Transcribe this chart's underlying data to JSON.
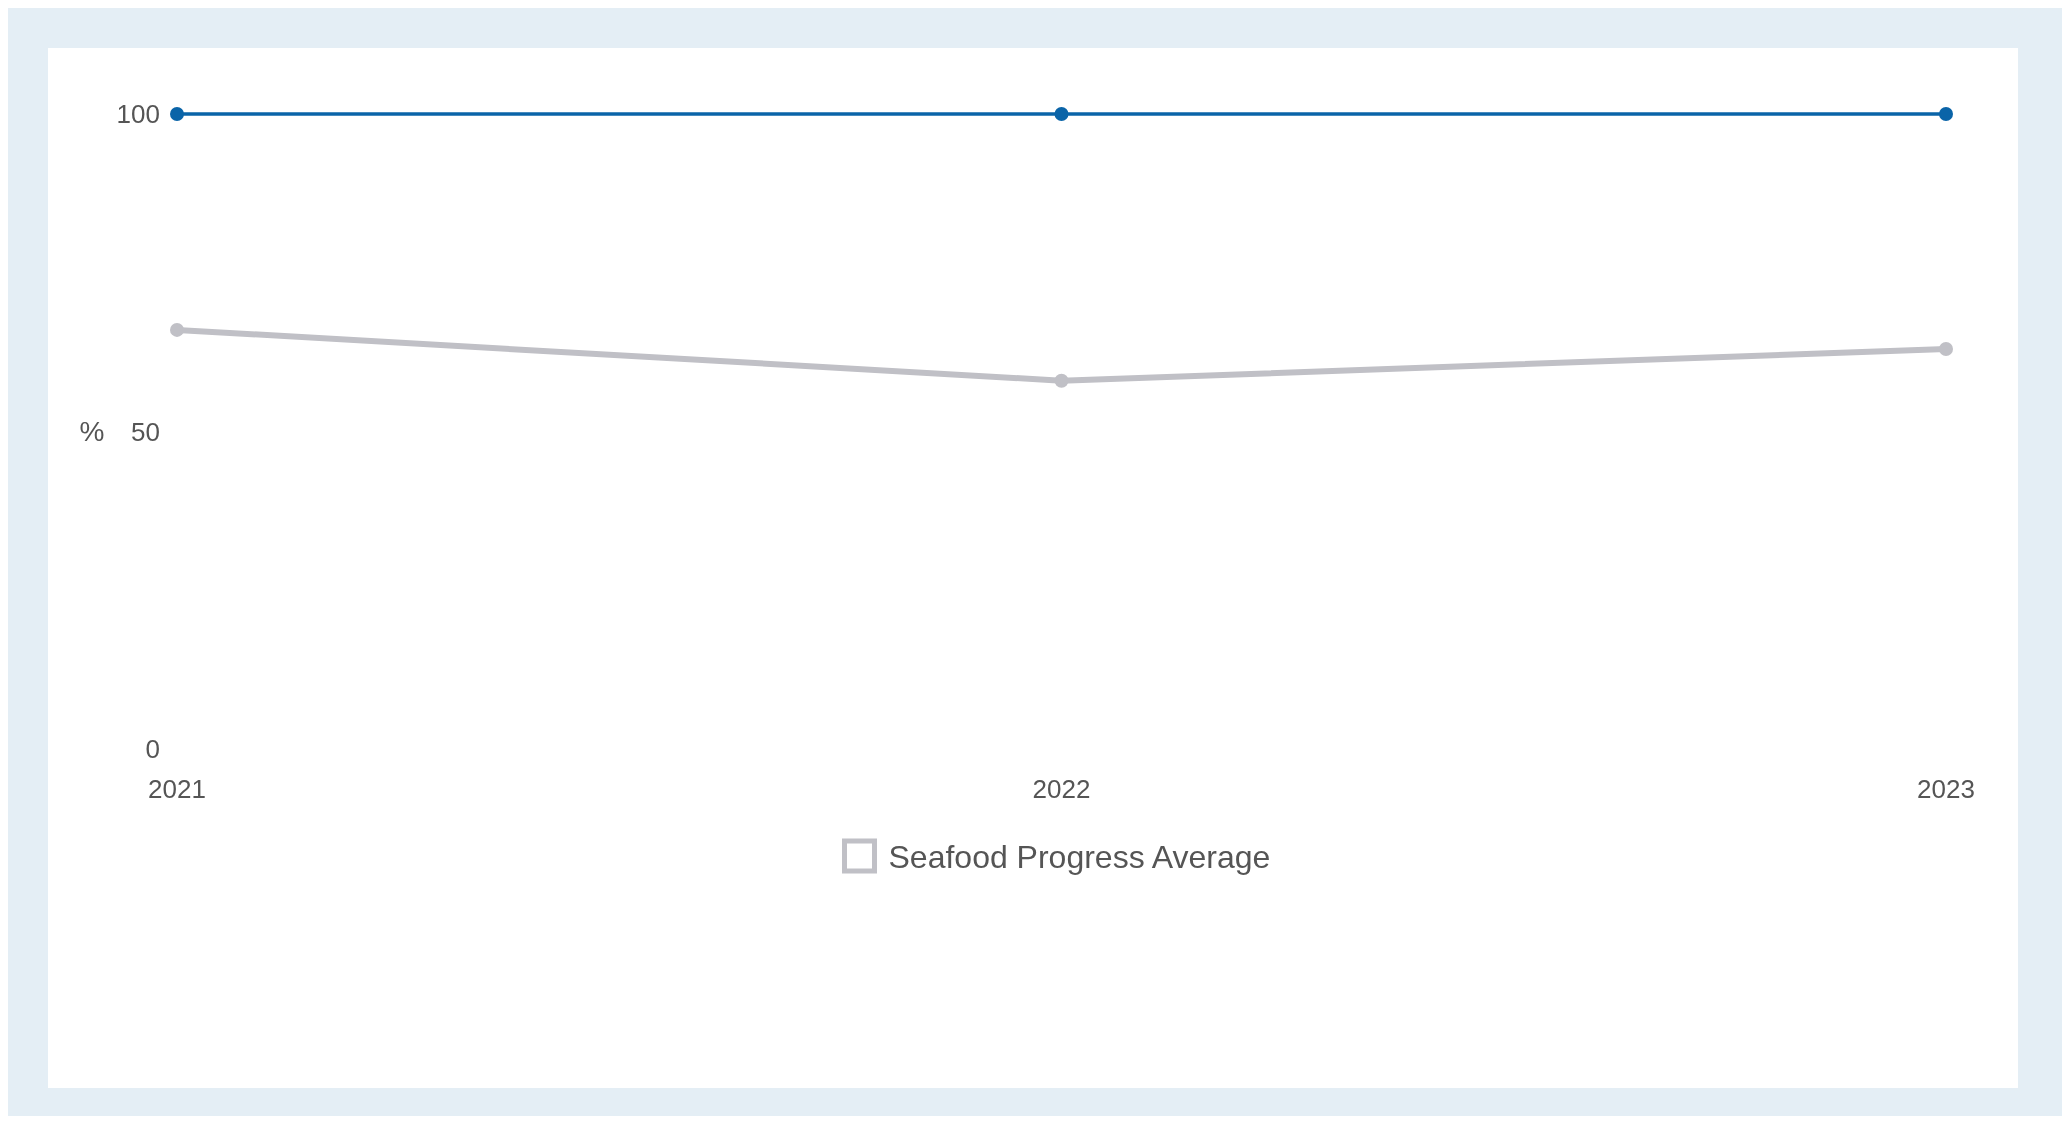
{
  "chart_data": {
    "type": "line",
    "ylabel": "%",
    "x": [
      2021,
      2022,
      2023
    ],
    "xlim": [
      2021,
      2023
    ],
    "xticks": [
      2021,
      2022,
      2023
    ],
    "ylim": [
      0,
      100
    ],
    "yticks": [
      0,
      50,
      100
    ],
    "marker": "circle",
    "legend": "bottom",
    "grid": false,
    "series": [
      {
        "color": "#0a64a8",
        "values": [
          100,
          100,
          100
        ]
      },
      {
        "name": "Seafood Progress Average",
        "color": "#c0c0c6",
        "values": [
          66,
          58,
          63
        ]
      }
    ]
  }
}
